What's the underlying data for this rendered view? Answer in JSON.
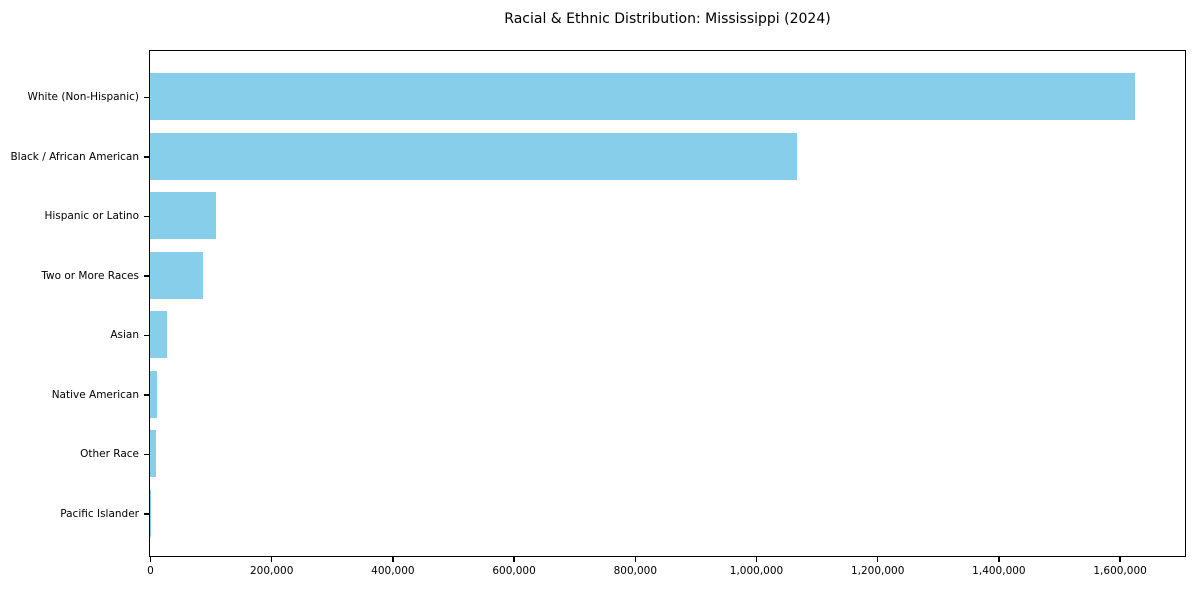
{
  "chart_data": {
    "type": "bar",
    "orientation": "horizontal",
    "title": "Racial & Ethnic Distribution: Mississippi (2024)",
    "categories": [
      "White (Non-Hispanic)",
      "Black / African American",
      "Hispanic or Latino",
      "Two or More Races",
      "Asian",
      "Native American",
      "Other Race",
      "Pacific Islander"
    ],
    "values": [
      1625000,
      1068000,
      109000,
      88000,
      28000,
      12000,
      10000,
      1500
    ],
    "xlabel": "",
    "ylabel": "",
    "xlim": [
      0,
      1706250
    ],
    "x_ticks": [
      0,
      200000,
      400000,
      600000,
      800000,
      1000000,
      1200000,
      1400000,
      1600000
    ],
    "x_tick_labels": [
      "0",
      "200,000",
      "400,000",
      "600,000",
      "800,000",
      "1,000,000",
      "1,200,000",
      "1,400,000",
      "1,600,000"
    ],
    "grid": false,
    "legend": "none",
    "bar_color": "#87CEEB",
    "colors": {
      "axis": "#000000",
      "text": "#000000",
      "background": "#FFFFFF"
    }
  }
}
